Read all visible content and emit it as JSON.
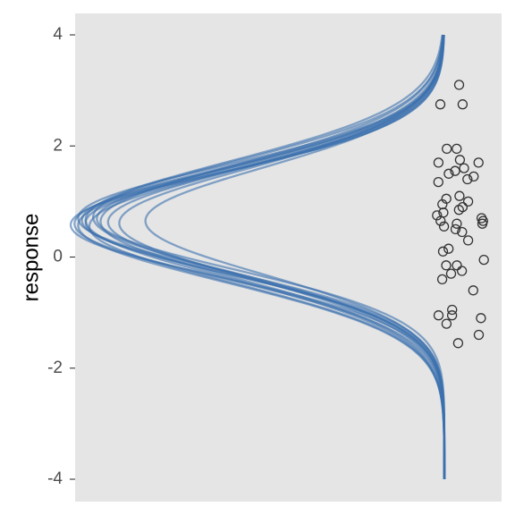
{
  "chart_data": {
    "type": "area",
    "subtype": "ridgeline-spaghetti-with-jittered-points",
    "title": "",
    "xlabel": "",
    "ylabel": "response",
    "ylim": [
      -4,
      4
    ],
    "yticks": [
      -4,
      -2,
      0,
      2,
      4
    ],
    "grid": false,
    "legend": "none",
    "colors": {
      "panel_background": "#e5e5e5",
      "curve": "#3b6fad",
      "point_stroke": "#333333",
      "tick_text": "#4d4d4d",
      "axis_title": "#000000"
    },
    "curve_draws": [
      {
        "mu": 0.62,
        "sigma": 0.92,
        "scale": 0.96
      },
      {
        "mu": 0.6,
        "sigma": 0.97,
        "scale": 0.99
      },
      {
        "mu": 0.66,
        "sigma": 0.95,
        "scale": 0.97
      },
      {
        "mu": 0.55,
        "sigma": 1.0,
        "scale": 0.95
      },
      {
        "mu": 0.7,
        "sigma": 0.94,
        "scale": 0.98
      },
      {
        "mu": 0.64,
        "sigma": 1.02,
        "scale": 0.92
      },
      {
        "mu": 0.58,
        "sigma": 0.93,
        "scale": 1.0
      },
      {
        "mu": 0.72,
        "sigma": 0.99,
        "scale": 0.94
      },
      {
        "mu": 0.63,
        "sigma": 0.96,
        "scale": 0.9
      },
      {
        "mu": 0.67,
        "sigma": 1.04,
        "scale": 0.96
      },
      {
        "mu": 0.61,
        "sigma": 0.98,
        "scale": 0.87
      },
      {
        "mu": 0.69,
        "sigma": 0.91,
        "scale": 0.93
      },
      {
        "mu": 0.57,
        "sigma": 1.01,
        "scale": 0.98
      },
      {
        "mu": 0.65,
        "sigma": 0.96,
        "scale": 0.8
      }
    ],
    "observations": [
      3.1,
      2.75,
      2.75,
      1.95,
      1.95,
      1.75,
      1.7,
      1.7,
      1.6,
      1.55,
      1.5,
      1.45,
      1.4,
      1.35,
      1.1,
      1.05,
      1.0,
      0.95,
      0.9,
      0.85,
      0.8,
      0.75,
      0.7,
      0.65,
      0.65,
      0.6,
      0.6,
      0.55,
      0.5,
      0.45,
      0.3,
      0.15,
      0.1,
      -0.05,
      -0.15,
      -0.15,
      -0.25,
      -0.3,
      -0.4,
      -0.6,
      -0.95,
      -1.05,
      -1.05,
      -1.1,
      -1.2,
      -1.4,
      -1.55
    ]
  }
}
